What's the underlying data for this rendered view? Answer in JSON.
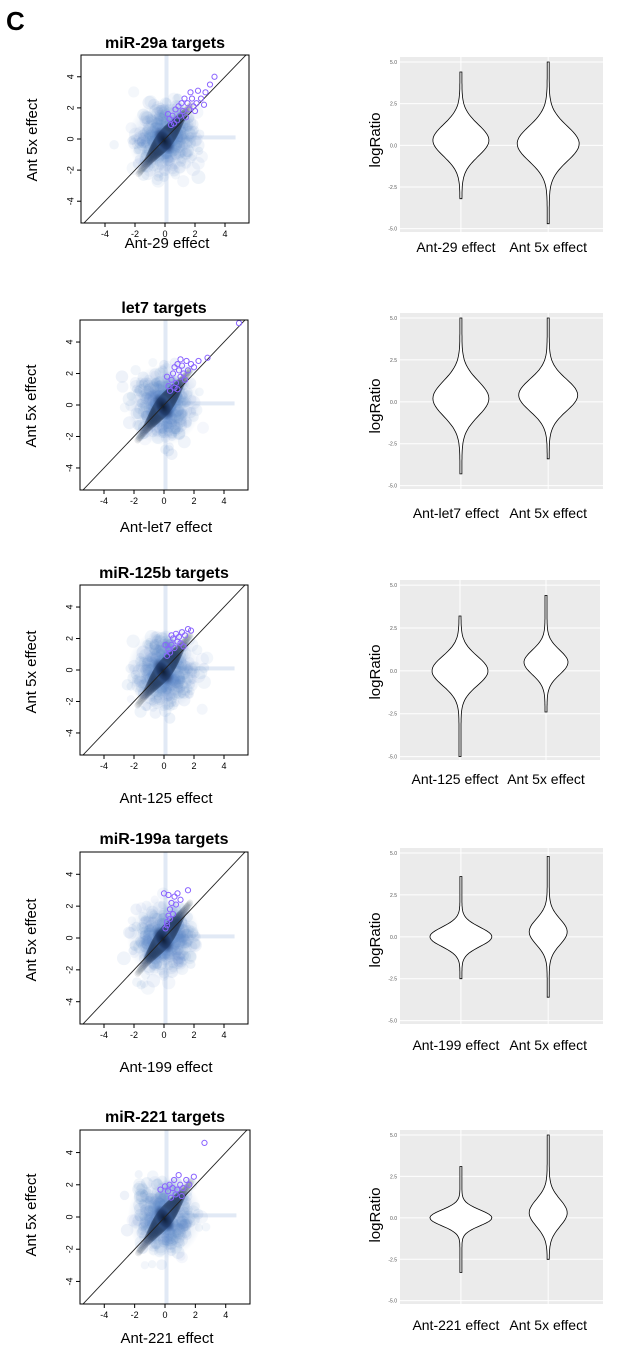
{
  "panel_label": "C",
  "colors": {
    "density": "#5a86c8",
    "density_dark": "#0d1b33",
    "target_circle": "#8a63ff",
    "violin_bg": "#ebebeb",
    "violin_grid": "#ffffff"
  },
  "chart_data": [
    {
      "type": "scatter",
      "title": "miR-29a targets",
      "xlabel": "Ant-29 effect",
      "ylabel": "Ant 5x effect",
      "xticks": [
        -4,
        -2,
        0,
        2,
        4
      ],
      "yticks": [
        -4,
        -2,
        0,
        2,
        4
      ],
      "xlim": [
        -5.6,
        5.6
      ],
      "ylim": [
        -5.4,
        5.4
      ],
      "diagonal": true,
      "points": [
        [
          0.3,
          1.3
        ],
        [
          0.5,
          1.5
        ],
        [
          0.7,
          1.9
        ],
        [
          0.9,
          2.1
        ],
        [
          1.1,
          2.3
        ],
        [
          1.3,
          2.6
        ],
        [
          1.5,
          2.3
        ],
        [
          1.8,
          2.6
        ],
        [
          2.1,
          2.3
        ],
        [
          2.4,
          2.6
        ],
        [
          2.7,
          3.0
        ],
        [
          3.0,
          3.5
        ],
        [
          3.3,
          4.0
        ],
        [
          1.0,
          1.5
        ],
        [
          1.2,
          1.8
        ],
        [
          0.8,
          1.2
        ],
        [
          1.6,
          1.9
        ],
        [
          2.0,
          1.8
        ],
        [
          0.6,
          1.0
        ],
        [
          1.4,
          1.4
        ],
        [
          2.2,
          3.1
        ],
        [
          1.7,
          3.0
        ],
        [
          0.4,
          0.9
        ],
        [
          1.9,
          2.1
        ],
        [
          2.6,
          2.2
        ],
        [
          0.2,
          1.6
        ]
      ]
    },
    {
      "type": "scatter",
      "title": "let7 targets",
      "xlabel": "Ant-let7 effect",
      "ylabel": "Ant 5x effect",
      "xticks": [
        -4,
        -2,
        0,
        2,
        4
      ],
      "yticks": [
        -4,
        -2,
        0,
        2,
        4
      ],
      "xlim": [
        -5.6,
        5.6
      ],
      "ylim": [
        -5.4,
        5.4
      ],
      "diagonal": true,
      "points": [
        [
          0.3,
          1.2
        ],
        [
          0.5,
          1.6
        ],
        [
          0.6,
          2.0
        ],
        [
          0.7,
          2.4
        ],
        [
          0.9,
          2.6
        ],
        [
          1.0,
          2.2
        ],
        [
          1.1,
          1.8
        ],
        [
          1.2,
          2.5
        ],
        [
          1.3,
          2.0
        ],
        [
          1.4,
          1.6
        ],
        [
          0.8,
          1.4
        ],
        [
          0.4,
          0.9
        ],
        [
          1.6,
          2.2
        ],
        [
          1.8,
          2.6
        ],
        [
          2.0,
          2.4
        ],
        [
          2.3,
          2.8
        ],
        [
          2.9,
          3.0
        ],
        [
          0.2,
          1.8
        ],
        [
          0.9,
          1.0
        ],
        [
          1.5,
          2.8
        ],
        [
          5.0,
          5.2
        ],
        [
          0.7,
          1.1
        ],
        [
          1.1,
          2.9
        ]
      ]
    },
    {
      "type": "scatter",
      "title": "miR-125b targets",
      "xlabel": "Ant-125 effect",
      "ylabel": "Ant 5x effect",
      "xticks": [
        -4,
        -2,
        0,
        2,
        4
      ],
      "yticks": [
        -4,
        -2,
        0,
        2,
        4
      ],
      "xlim": [
        -5.6,
        5.6
      ],
      "ylim": [
        -5.4,
        5.4
      ],
      "diagonal": true,
      "points": [
        [
          0.2,
          0.9
        ],
        [
          0.3,
          1.3
        ],
        [
          0.5,
          1.6
        ],
        [
          0.6,
          2.0
        ],
        [
          0.8,
          2.3
        ],
        [
          1.0,
          2.1
        ],
        [
          1.1,
          1.7
        ],
        [
          1.2,
          2.4
        ],
        [
          1.4,
          2.2
        ],
        [
          1.6,
          2.6
        ],
        [
          0.4,
          1.1
        ],
        [
          0.7,
          1.4
        ],
        [
          0.9,
          1.8
        ],
        [
          1.3,
          1.5
        ],
        [
          0.1,
          1.6
        ],
        [
          0.5,
          2.2
        ],
        [
          1.8,
          2.5
        ]
      ]
    },
    {
      "type": "scatter",
      "title": "miR-199a targets",
      "xlabel": "Ant-199 effect",
      "ylabel": "Ant 5x effect",
      "xticks": [
        -4,
        -2,
        0,
        2,
        4
      ],
      "yticks": [
        -4,
        -2,
        0,
        2,
        4
      ],
      "xlim": [
        -5.6,
        5.6
      ],
      "ylim": [
        -5.4,
        5.4
      ],
      "diagonal": true,
      "points": [
        [
          0.1,
          0.6
        ],
        [
          0.2,
          1.0
        ],
        [
          0.3,
          1.4
        ],
        [
          0.4,
          1.8
        ],
        [
          0.5,
          2.2
        ],
        [
          0.3,
          2.7
        ],
        [
          0.7,
          2.6
        ],
        [
          0.9,
          2.8
        ],
        [
          1.1,
          2.4
        ],
        [
          0.6,
          1.5
        ],
        [
          0.2,
          0.8
        ],
        [
          1.6,
          3.0
        ],
        [
          0.0,
          2.8
        ],
        [
          0.8,
          2.1
        ],
        [
          0.4,
          1.2
        ]
      ]
    },
    {
      "type": "scatter",
      "title": "miR-221 targets",
      "xlabel": "Ant-221 effect",
      "ylabel": "Ant 5x effect",
      "xticks": [
        -4,
        -2,
        0,
        2,
        4
      ],
      "yticks": [
        -4,
        -2,
        0,
        2,
        4
      ],
      "xlim": [
        -5.6,
        5.6
      ],
      "ylim": [
        -5.4,
        5.4
      ],
      "diagonal": true,
      "points": [
        [
          -0.3,
          1.7
        ],
        [
          0.0,
          1.9
        ],
        [
          0.2,
          1.6
        ],
        [
          0.3,
          2.0
        ],
        [
          0.5,
          1.8
        ],
        [
          0.6,
          2.3
        ],
        [
          0.8,
          1.7
        ],
        [
          1.0,
          2.0
        ],
        [
          1.2,
          1.8
        ],
        [
          1.4,
          2.3
        ],
        [
          1.6,
          2.0
        ],
        [
          1.9,
          2.5
        ],
        [
          0.4,
          1.2
        ],
        [
          0.7,
          1.4
        ],
        [
          2.6,
          4.6
        ],
        [
          0.9,
          2.6
        ],
        [
          1.1,
          1.3
        ]
      ]
    },
    {
      "type": "violin",
      "ylabel": "logRatio",
      "categories": [
        "Ant-29 effect",
        "Ant 5x effect"
      ],
      "yticks": [
        5.0,
        2.5,
        0.0,
        -2.5,
        -5.0
      ],
      "ytick_labels": [
        "5.0",
        "2.5",
        "0.0",
        "-2.5",
        "-5.0"
      ],
      "ylim": [
        -5.2,
        5.3
      ],
      "violins": [
        {
          "min": -3.2,
          "max": 4.4,
          "center": 0.3,
          "bulge": 0.9,
          "neck": 2.0
        },
        {
          "min": -4.7,
          "max": 5.0,
          "center": 0.1,
          "bulge": 1.0,
          "neck": 2.2
        }
      ]
    },
    {
      "type": "violin",
      "ylabel": "logRatio",
      "categories": [
        "Ant-let7 effect",
        "Ant 5x effect"
      ],
      "yticks": [
        5.0,
        2.5,
        0.0,
        -2.5,
        -5.0
      ],
      "ytick_labels": [
        "5.0",
        "2.5",
        "0.0",
        "-2.5",
        "-5.0"
      ],
      "ylim": [
        -5.2,
        5.3
      ],
      "violins": [
        {
          "min": -4.3,
          "max": 5.0,
          "center": 0.2,
          "bulge": 0.9,
          "neck": 2.2
        },
        {
          "min": -3.4,
          "max": 5.0,
          "center": 0.4,
          "bulge": 0.95,
          "neck": 2.0
        }
      ]
    },
    {
      "type": "violin",
      "ylabel": "logRatio",
      "categories": [
        "Ant-125 effect",
        "Ant 5x effect"
      ],
      "yticks": [
        5.0,
        2.5,
        0.0,
        -2.5,
        -5.0
      ],
      "ytick_labels": [
        "5.0",
        "2.5",
        "0.0",
        "-2.5",
        "-5.0"
      ],
      "ylim": [
        -5.2,
        5.3
      ],
      "violins": [
        {
          "min": -5.0,
          "max": 3.2,
          "center": 0.0,
          "bulge": 0.9,
          "neck": 1.8
        },
        {
          "min": -2.4,
          "max": 4.4,
          "center": 0.5,
          "bulge": 0.7,
          "neck": 1.5
        }
      ]
    },
    {
      "type": "violin",
      "ylabel": "logRatio",
      "categories": [
        "Ant-199 effect",
        "Ant 5x effect"
      ],
      "yticks": [
        5.0,
        2.5,
        0.0,
        -2.5,
        -5.0
      ],
      "ytick_labels": [
        "5.0",
        "2.5",
        "0.0",
        "-2.5",
        "-5.0"
      ],
      "ylim": [
        -5.2,
        5.3
      ],
      "violins": [
        {
          "min": -2.5,
          "max": 3.6,
          "center": 0.0,
          "bulge": 1.0,
          "neck": 1.2
        },
        {
          "min": -3.6,
          "max": 4.8,
          "center": 0.3,
          "bulge": 0.6,
          "neck": 1.6
        }
      ]
    },
    {
      "type": "violin",
      "ylabel": "logRatio",
      "categories": [
        "Ant-221 effect",
        "Ant 5x effect"
      ],
      "yticks": [
        5.0,
        2.5,
        0.0,
        -2.5,
        -5.0
      ],
      "ytick_labels": [
        "5.0",
        "2.5",
        "0.0",
        "-2.5",
        "-5.0"
      ],
      "ylim": [
        -5.2,
        5.3
      ],
      "violins": [
        {
          "min": -3.3,
          "max": 3.1,
          "center": 0.0,
          "bulge": 1.0,
          "neck": 1.0
        },
        {
          "min": -2.5,
          "max": 5.0,
          "center": 0.3,
          "bulge": 0.6,
          "neck": 1.7
        }
      ]
    }
  ]
}
